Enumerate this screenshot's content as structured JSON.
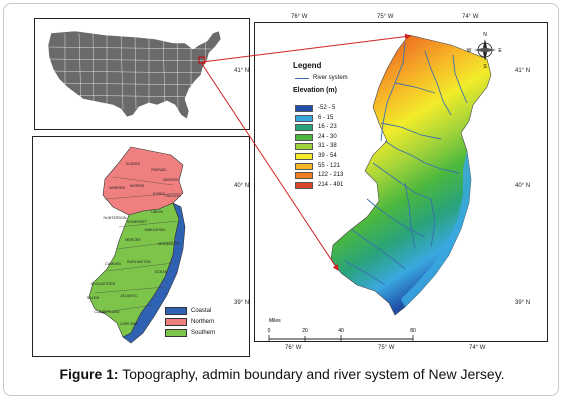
{
  "caption": {
    "bold": "Figure 1:",
    "text": " Topography, admin boundary and river system of New Jersey."
  },
  "legend": {
    "title": "Legend",
    "river_label": "River system",
    "elevation_title": "Elevation (m)",
    "classes": [
      {
        "label": "-52 - 5",
        "color": "#1f4fa8"
      },
      {
        "label": "6 - 15",
        "color": "#3aa8e0"
      },
      {
        "label": "16 - 23",
        "color": "#29a37a"
      },
      {
        "label": "24 - 30",
        "color": "#4cb83e"
      },
      {
        "label": "31 - 38",
        "color": "#9fd23a"
      },
      {
        "label": "39 - 54",
        "color": "#f2ec2a"
      },
      {
        "label": "55 - 121",
        "color": "#f7b628"
      },
      {
        "label": "122 - 213",
        "color": "#ef7d24"
      },
      {
        "label": "214 - 491",
        "color": "#d9472b"
      }
    ],
    "river_color": "#3a6fb0"
  },
  "axes": {
    "top": [
      "76° W",
      "75° W",
      "74° W"
    ],
    "bottom": [
      "76° W",
      "75° W",
      "74° W"
    ],
    "left": [
      "41° N",
      "40° N",
      "39° N"
    ],
    "right": [
      "41° N",
      "40° N",
      "39° N"
    ]
  },
  "scale": {
    "unit": "Miles",
    "ticks": [
      "0",
      "20",
      "40",
      "80"
    ]
  },
  "compass": {
    "n": "N",
    "s": "S",
    "e": "E",
    "w": "W"
  },
  "regions": {
    "items": [
      {
        "label": "Coastal",
        "color": "#2f62b3"
      },
      {
        "label": "Northern",
        "color": "#f08080"
      },
      {
        "label": "Southern",
        "color": "#7cc44a"
      }
    ],
    "county_labels": [
      "SUSSEX",
      "PASSAIC",
      "WARREN",
      "MORRIS",
      "BERGEN",
      "ESSEX",
      "HUDSON",
      "HUNTERDON",
      "SOMERSET",
      "UNION",
      "MIDDLESEX",
      "MERCER",
      "MONMOUTH",
      "BURLINGTON",
      "OCEAN",
      "CAMDEN",
      "GLOUCESTER",
      "SALEM",
      "ATLANTIC",
      "CUMBERLAND",
      "CAPE MAY"
    ]
  },
  "colors": {
    "usa_fill": "#6a6a6a",
    "usa_stroke": "#ffffff",
    "arrow": "#d21f1f"
  }
}
